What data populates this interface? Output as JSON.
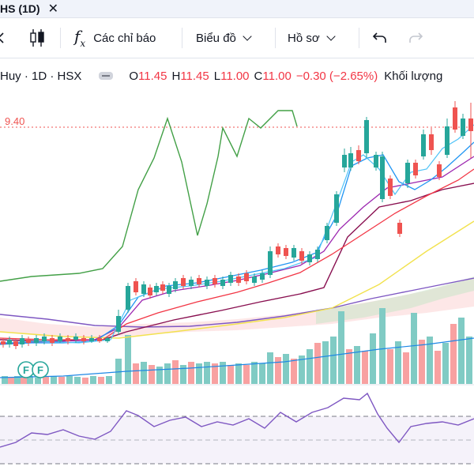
{
  "tab": {
    "title": "HS (1D)"
  },
  "toolbar": {
    "indicators_label": "Các chỉ báo",
    "chart_label": "Biểu đồ",
    "profile_label": "Hồ sơ"
  },
  "legend": {
    "symbol": "Huy · 1D · HSX",
    "o_label": "O",
    "o_value": "11.45",
    "h_label": "H",
    "h_value": "11.45",
    "l_label": "L",
    "l_value": "11.00",
    "c_label": "C",
    "c_value": "11.00",
    "change": "−0.30 (−2.65%)",
    "volume_label": "Khối lượng"
  },
  "price_line": {
    "value": "9.40"
  },
  "markers": [
    "F",
    "F"
  ],
  "colors": {
    "up": "#26a69a",
    "down": "#ef5350",
    "fast_ma": "#2962ff",
    "ma_violet": "#9c27b0",
    "ma_red": "#f23645",
    "ma_dark": "#880e4f",
    "ma_yellow": "#f7e76c",
    "ma_purple": "#7e57c2",
    "green_line": "#43a047",
    "rsi": "#7e57c2"
  },
  "icons": {
    "bar_style": "candlestick-icon",
    "indicators": "fx-icon",
    "undo": "undo-icon",
    "redo": "redo-icon"
  }
}
